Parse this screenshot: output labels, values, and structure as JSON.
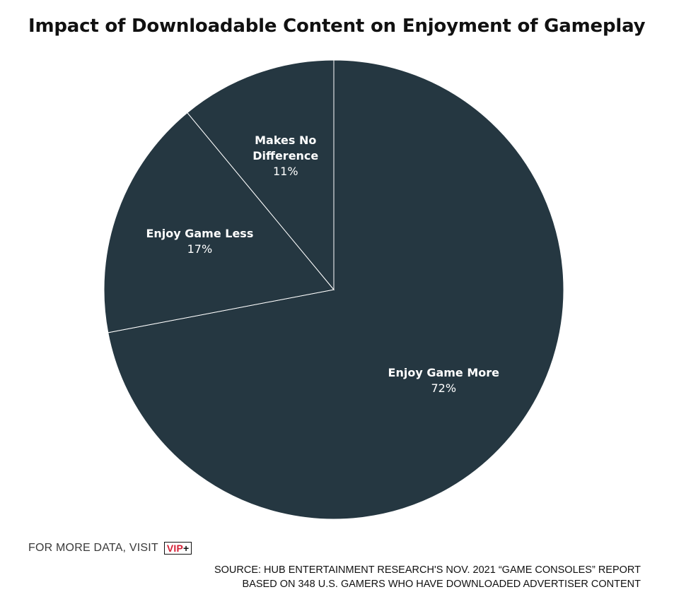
{
  "title": "Impact of Downloadable Content on Enjoyment of Gameplay",
  "chart_data": {
    "type": "pie",
    "title": "Impact of Downloadable Content on Enjoyment of Gameplay",
    "slices": [
      {
        "label": "Enjoy Game More",
        "value": 72,
        "display": "72%",
        "label_lines": [
          "Enjoy Game More"
        ]
      },
      {
        "label": "Enjoy Game Less",
        "value": 17,
        "display": "17%",
        "label_lines": [
          "Enjoy Game Less"
        ]
      },
      {
        "label": "Makes No Difference",
        "value": 11,
        "display": "11%",
        "label_lines": [
          "Makes No",
          "Difference"
        ]
      }
    ],
    "colors": {
      "slice_fill": "#253741",
      "slice_border": "#ffffff"
    }
  },
  "footer": {
    "cta_text": "FOR MORE DATA, VISIT",
    "vip_badge": {
      "main": "VIP",
      "plus": "+"
    },
    "source_line1": "SOURCE: HUB ENTERTAINMENT RESEARCH'S NOV. 2021 “GAME CONSOLES” REPORT",
    "source_line2": "BASED ON 348 U.S. GAMERS WHO HAVE DOWNLOADED ADVERTISER CONTENT"
  },
  "colors": {
    "vip_red": "#d41f35"
  }
}
